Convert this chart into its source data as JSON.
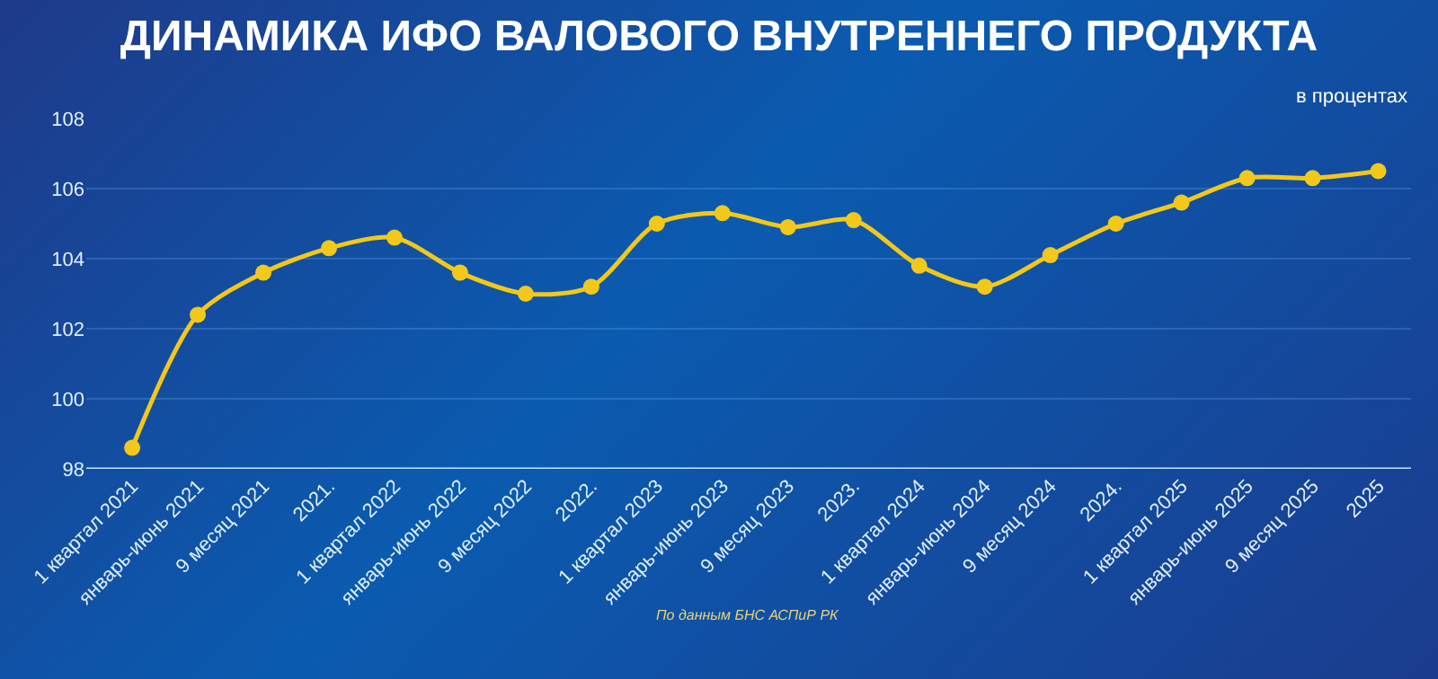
{
  "chart_data": {
    "type": "line",
    "title": "ДИНАМИКА ИФО ВАЛОВОГО ВНУТРЕННЕГО ПРОДУКТА",
    "subtitle": "в процентах",
    "categories": [
      "1 квартал 2021",
      "январь-июнь 2021",
      "9 месяц 2021",
      "2021.",
      "1 квартал 2022",
      "январь-июнь 2022",
      "9 месяц 2022",
      "2022.",
      "1 квартал 2023",
      "январь-июнь 2023",
      "9 месяц 2023",
      "2023.",
      "1 квартал 2024",
      "январь-июнь 2024",
      "9 месяц 2024",
      "2024.",
      "1 квартал 2025",
      "январь-июнь 2025",
      "9 месяц 2025",
      "2025"
    ],
    "series": [
      {
        "color": "#f2c81a",
        "values": [
          98.6,
          102.4,
          103.6,
          104.3,
          104.6,
          103.6,
          103.0,
          103.2,
          105.0,
          105.3,
          104.9,
          105.1,
          103.8,
          103.2,
          104.1,
          105.0,
          105.6,
          106.3,
          106.3,
          106.5
        ]
      }
    ],
    "ylim": [
      98,
      108
    ],
    "yticks": [
      98,
      100,
      102,
      104,
      106,
      108
    ],
    "grid": "y",
    "marker": "circle",
    "line_style": "solid",
    "annotations": [
      "По данным БНС АСПиР РК"
    ]
  }
}
